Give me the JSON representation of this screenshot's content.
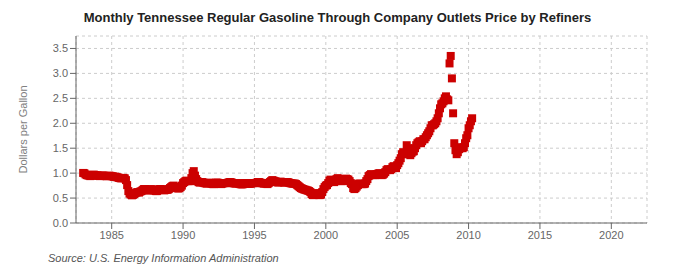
{
  "chart_data": {
    "type": "scatter",
    "title": "Monthly Tennessee Regular Gasoline Through Company Outlets Price by Refiners",
    "ylabel": "Dollars per Gallon",
    "annotations": [
      "Source: U.S. Energy Information Administration"
    ],
    "color": "#cc0000",
    "marker": "square",
    "grid": true,
    "xlim": [
      1982.5,
      2022.5
    ],
    "ylim": [
      0.0,
      3.75
    ],
    "xticks": [
      1985,
      1990,
      1995,
      2000,
      2005,
      2010,
      2015,
      2020
    ],
    "yticks": [
      {
        "value": 0.0,
        "label": "0.0"
      },
      0.5,
      {
        "value": 1.0,
        "label": "1.0"
      },
      1.5,
      {
        "value": 2.0,
        "label": "2.0"
      },
      2.5,
      {
        "value": 3.0,
        "label": "3.0"
      },
      3.5
    ],
    "x": [
      1983.0,
      1983.083,
      1983.167,
      1983.25,
      1983.333,
      1983.417,
      1983.5,
      1983.583,
      1983.667,
      1983.75,
      1983.833,
      1983.917,
      1984.0,
      1984.083,
      1984.167,
      1984.25,
      1984.333,
      1984.417,
      1984.5,
      1984.583,
      1984.667,
      1984.75,
      1984.833,
      1984.917,
      1985.0,
      1985.083,
      1985.167,
      1985.25,
      1985.333,
      1985.417,
      1985.5,
      1985.583,
      1985.667,
      1985.75,
      1985.833,
      1985.917,
      1986.0,
      1986.083,
      1986.167,
      1986.25,
      1986.333,
      1986.417,
      1986.5,
      1986.583,
      1986.667,
      1986.75,
      1986.833,
      1986.917,
      1987.0,
      1987.083,
      1987.167,
      1987.25,
      1987.333,
      1987.417,
      1987.5,
      1987.583,
      1987.667,
      1987.75,
      1987.833,
      1987.917,
      1988.0,
      1988.083,
      1988.167,
      1988.25,
      1988.333,
      1988.417,
      1988.5,
      1988.583,
      1988.667,
      1988.75,
      1988.833,
      1988.917,
      1989.0,
      1989.083,
      1989.167,
      1989.25,
      1989.333,
      1989.417,
      1989.5,
      1989.583,
      1989.667,
      1989.75,
      1989.833,
      1989.917,
      1990.0,
      1990.083,
      1990.167,
      1990.25,
      1990.333,
      1990.417,
      1990.5,
      1990.583,
      1990.667,
      1990.75,
      1990.833,
      1990.917,
      1991.0,
      1991.083,
      1991.167,
      1991.25,
      1991.333,
      1991.417,
      1991.5,
      1991.583,
      1991.667,
      1991.75,
      1991.833,
      1991.917,
      1992.0,
      1992.083,
      1992.167,
      1992.25,
      1992.333,
      1992.417,
      1992.5,
      1992.583,
      1992.667,
      1992.75,
      1992.833,
      1992.917,
      1993.0,
      1993.083,
      1993.167,
      1993.25,
      1993.333,
      1993.417,
      1993.5,
      1993.583,
      1993.667,
      1993.75,
      1993.833,
      1993.917,
      1994.0,
      1994.083,
      1994.167,
      1994.25,
      1994.333,
      1994.417,
      1994.5,
      1994.583,
      1994.667,
      1994.75,
      1994.833,
      1994.917,
      1995.0,
      1995.083,
      1995.167,
      1995.25,
      1995.333,
      1995.417,
      1995.5,
      1995.583,
      1995.667,
      1995.75,
      1995.833,
      1995.917,
      1996.0,
      1996.083,
      1996.167,
      1996.25,
      1996.333,
      1996.417,
      1996.5,
      1996.583,
      1996.667,
      1996.75,
      1996.833,
      1996.917,
      1997.0,
      1997.083,
      1997.167,
      1997.25,
      1997.333,
      1997.417,
      1997.5,
      1997.583,
      1997.667,
      1997.75,
      1997.833,
      1997.917,
      1998.0,
      1998.083,
      1998.167,
      1998.25,
      1998.333,
      1998.417,
      1998.5,
      1998.583,
      1998.667,
      1998.75,
      1998.833,
      1998.917,
      1999.0,
      1999.083,
      1999.167,
      1999.25,
      1999.333,
      1999.417,
      1999.5,
      1999.583,
      1999.667,
      1999.75,
      1999.833,
      1999.917,
      2000.0,
      2000.083,
      2000.167,
      2000.25,
      2000.333,
      2000.417,
      2000.5,
      2000.583,
      2000.667,
      2000.75,
      2000.833,
      2000.917,
      2001.0,
      2001.083,
      2001.167,
      2001.25,
      2001.333,
      2001.417,
      2001.5,
      2001.583,
      2001.667,
      2001.75,
      2001.833,
      2001.917,
      2002.0,
      2002.083,
      2002.167,
      2002.25,
      2002.333,
      2002.417,
      2002.5,
      2002.583,
      2002.667,
      2002.75,
      2002.833,
      2002.917,
      2003.0,
      2003.083,
      2003.167,
      2003.25,
      2003.333,
      2003.417,
      2003.5,
      2003.583,
      2003.667,
      2003.75,
      2003.833,
      2003.917,
      2004.0,
      2004.083,
      2004.167,
      2004.25,
      2004.333,
      2004.417,
      2004.5,
      2004.583,
      2004.667,
      2004.75,
      2004.833,
      2004.917,
      2005.0,
      2005.083,
      2005.167,
      2005.25,
      2005.333,
      2005.417,
      2005.5,
      2005.583,
      2005.667,
      2005.75,
      2005.833,
      2005.917,
      2006.0,
      2006.083,
      2006.167,
      2006.25,
      2006.333,
      2006.417,
      2006.5,
      2006.583,
      2006.667,
      2006.75,
      2006.833,
      2006.917,
      2007.0,
      2007.083,
      2007.167,
      2007.25,
      2007.333,
      2007.417,
      2007.5,
      2007.583,
      2007.667,
      2007.75,
      2007.833,
      2007.917,
      2008.0,
      2008.083,
      2008.167,
      2008.25,
      2008.333,
      2008.417,
      2008.5,
      2008.583,
      2008.667,
      2008.75,
      2008.833,
      2008.917,
      2009.0,
      2009.083,
      2009.167,
      2009.25,
      2009.333,
      2009.417,
      2009.5,
      2009.583,
      2009.667,
      2009.75,
      2009.833,
      2009.917,
      2010.0,
      2010.083,
      2010.167,
      2010.25
    ],
    "values": [
      1.004,
      0.998,
      0.975,
      0.96,
      0.955,
      0.952,
      0.94,
      0.948,
      0.965,
      0.97,
      0.96,
      0.952,
      0.955,
      0.945,
      0.94,
      0.948,
      0.952,
      0.95,
      0.945,
      0.94,
      0.938,
      0.942,
      0.95,
      0.945,
      0.94,
      0.935,
      0.925,
      0.93,
      0.92,
      0.915,
      0.905,
      0.9,
      0.895,
      0.9,
      0.905,
      0.895,
      0.86,
      0.76,
      0.64,
      0.59,
      0.57,
      0.555,
      0.565,
      0.58,
      0.6,
      0.615,
      0.62,
      0.61,
      0.63,
      0.64,
      0.66,
      0.68,
      0.68,
      0.66,
      0.65,
      0.66,
      0.67,
      0.68,
      0.67,
      0.66,
      0.65,
      0.64,
      0.64,
      0.66,
      0.68,
      0.68,
      0.675,
      0.665,
      0.655,
      0.66,
      0.67,
      0.665,
      0.68,
      0.7,
      0.72,
      0.74,
      0.75,
      0.73,
      0.71,
      0.7,
      0.69,
      0.7,
      0.72,
      0.75,
      0.8,
      0.82,
      0.84,
      0.85,
      0.84,
      0.84,
      0.84,
      0.9,
      1.0,
      1.04,
      0.95,
      0.88,
      0.84,
      0.82,
      0.81,
      0.82,
      0.82,
      0.81,
      0.8,
      0.795,
      0.79,
      0.8,
      0.81,
      0.8,
      0.79,
      0.78,
      0.78,
      0.8,
      0.81,
      0.81,
      0.8,
      0.79,
      0.78,
      0.79,
      0.8,
      0.8,
      0.8,
      0.8,
      0.81,
      0.82,
      0.82,
      0.81,
      0.8,
      0.795,
      0.79,
      0.795,
      0.8,
      0.79,
      0.78,
      0.775,
      0.775,
      0.79,
      0.8,
      0.8,
      0.795,
      0.79,
      0.785,
      0.79,
      0.8,
      0.8,
      0.8,
      0.8,
      0.81,
      0.82,
      0.82,
      0.81,
      0.8,
      0.795,
      0.79,
      0.795,
      0.79,
      0.78,
      0.8,
      0.82,
      0.84,
      0.86,
      0.85,
      0.84,
      0.83,
      0.82,
      0.81,
      0.82,
      0.83,
      0.82,
      0.82,
      0.81,
      0.815,
      0.82,
      0.82,
      0.81,
      0.8,
      0.795,
      0.79,
      0.79,
      0.79,
      0.78,
      0.76,
      0.74,
      0.72,
      0.7,
      0.69,
      0.68,
      0.67,
      0.665,
      0.655,
      0.65,
      0.64,
      0.62,
      0.58,
      0.56,
      0.56,
      0.59,
      0.6,
      0.58,
      0.56,
      0.56,
      0.57,
      0.62,
      0.68,
      0.72,
      0.75,
      0.76,
      0.8,
      0.85,
      0.87,
      0.86,
      0.84,
      0.82,
      0.84,
      0.88,
      0.9,
      0.88,
      0.87,
      0.84,
      0.84,
      0.86,
      0.88,
      0.89,
      0.88,
      0.87,
      0.84,
      0.8,
      0.78,
      0.7,
      0.68,
      0.7,
      0.73,
      0.76,
      0.79,
      0.79,
      0.78,
      0.78,
      0.78,
      0.79,
      0.84,
      0.88,
      0.94,
      0.96,
      0.98,
      0.97,
      0.96,
      0.96,
      0.97,
      0.98,
      0.99,
      1.0,
      0.98,
      0.96,
      0.97,
      0.99,
      1.02,
      1.06,
      1.08,
      1.07,
      1.06,
      1.08,
      1.12,
      1.14,
      1.12,
      1.1,
      1.16,
      1.2,
      1.25,
      1.3,
      1.38,
      1.42,
      1.38,
      1.4,
      1.56,
      1.5,
      1.42,
      1.36,
      1.4,
      1.43,
      1.44,
      1.5,
      1.56,
      1.6,
      1.62,
      1.64,
      1.6,
      1.64,
      1.68,
      1.68,
      1.72,
      1.76,
      1.8,
      1.84,
      1.9,
      1.96,
      1.96,
      1.98,
      2.0,
      2.04,
      2.1,
      2.2,
      2.3,
      2.38,
      2.4,
      2.44,
      2.5,
      2.54,
      2.48,
      2.46,
      3.2,
      3.35,
      2.9,
      2.2,
      1.6,
      1.46,
      1.38,
      1.42,
      1.48,
      1.5,
      1.52,
      1.5,
      1.52,
      1.6,
      1.7,
      1.76,
      1.9,
      1.96,
      2.04,
      2.1
    ]
  }
}
